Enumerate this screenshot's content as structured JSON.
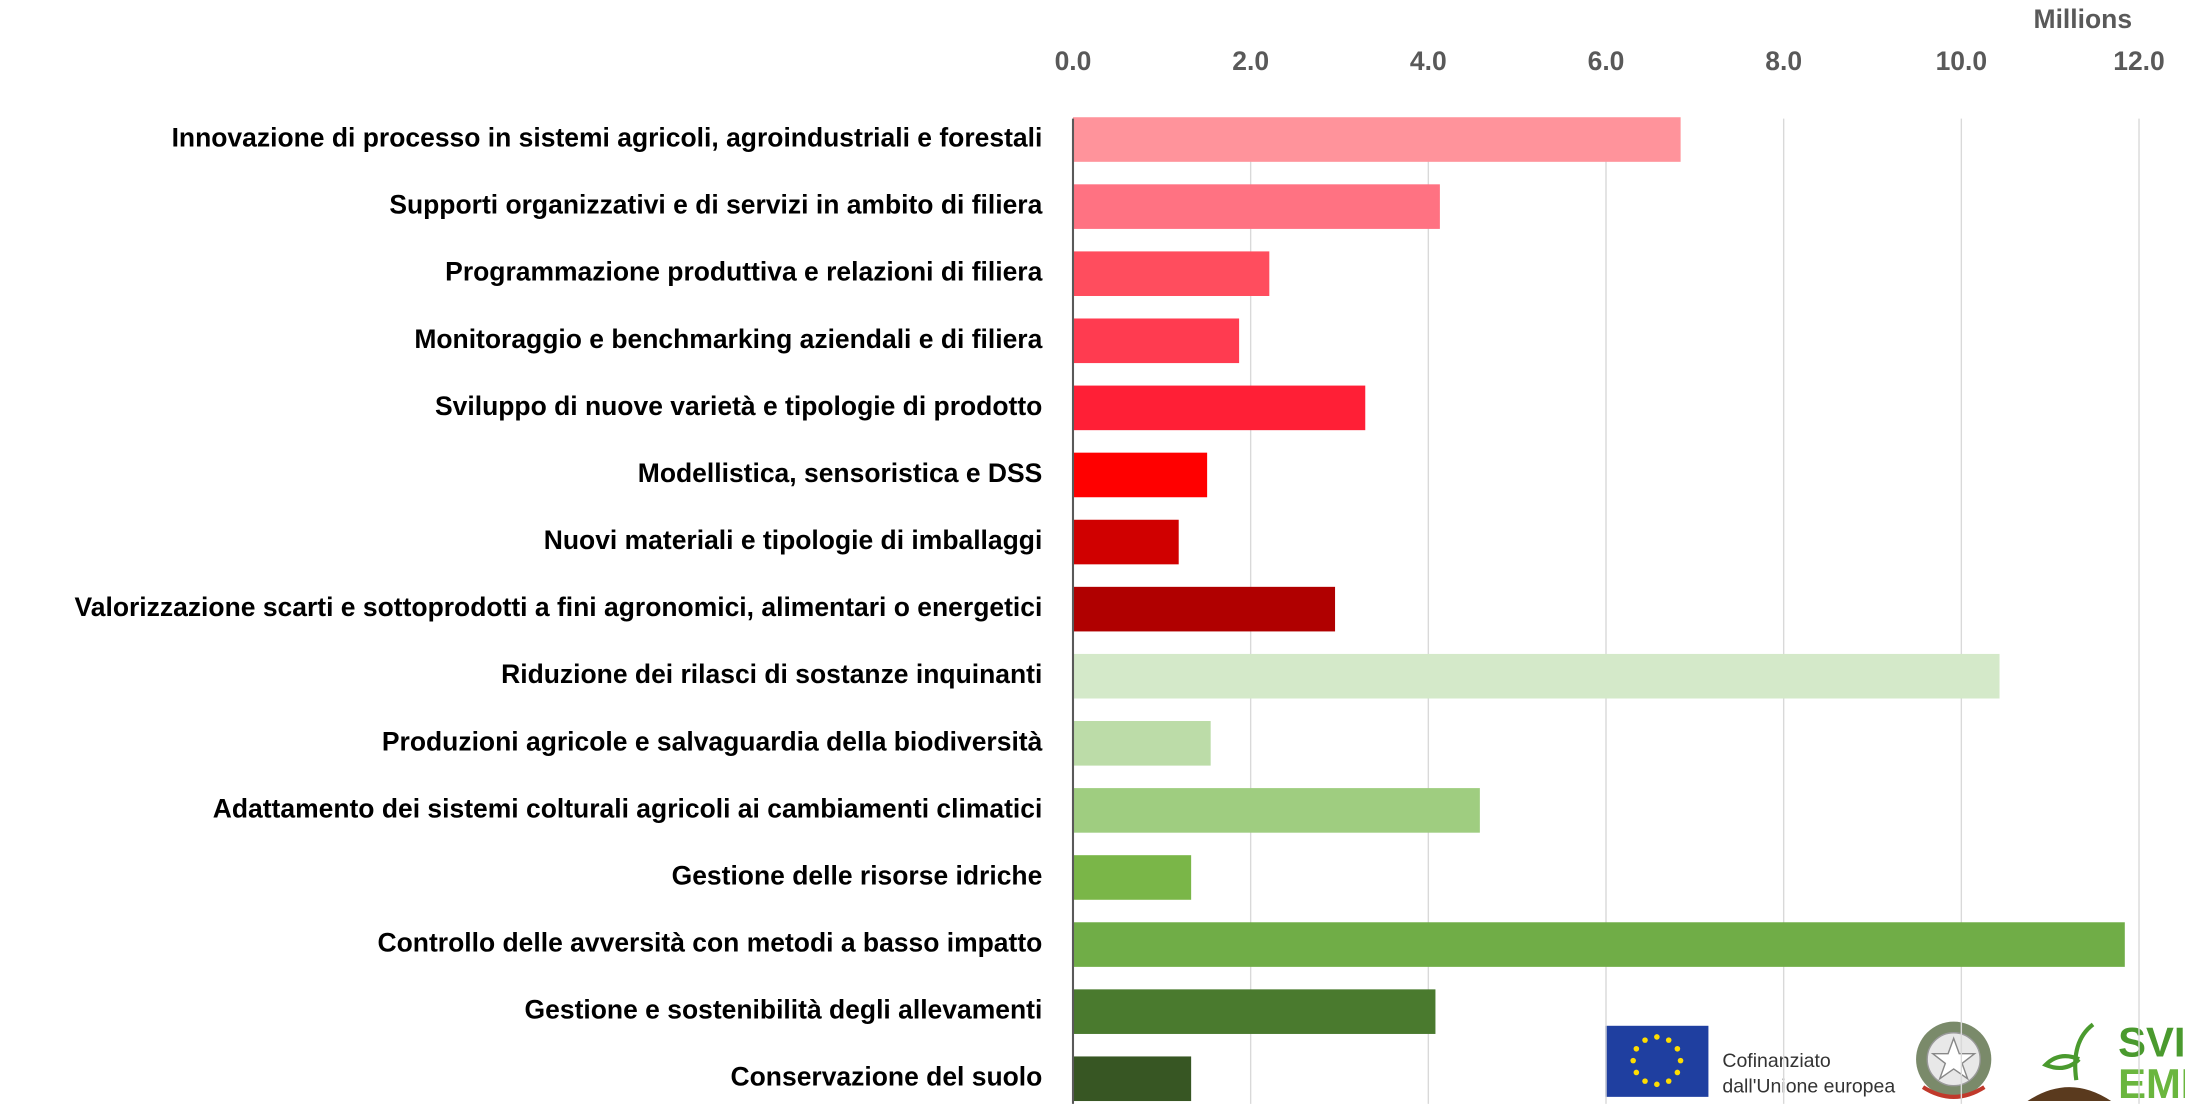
{
  "chart_data": {
    "type": "bar",
    "orientation": "horizontal",
    "unit_label": "Millions",
    "categories": [
      "Innovazione di processo in sistemi agricoli, agroindustriali e forestali",
      "Supporti organizzativi e di servizi in ambito di filiera",
      "Programmazione produttiva e relazioni di filiera",
      "Monitoraggio e benchmarking aziendali e di filiera",
      "Sviluppo di nuove varietà e tipologie di prodotto",
      "Modellistica, sensoristica e DSS",
      "Nuovi materiali e tipologie di imballaggi",
      "Valorizzazione scarti e sottoprodotti a fini agronomici, alimentari o energetici",
      "Riduzione dei rilasci di sostanze inquinanti",
      "Produzioni agricole e salvaguardia della biodiversità",
      "Adattamento dei sistemi colturali agricoli ai cambiamenti climatici",
      "Gestione delle risorse idriche",
      "Controllo delle avversità con metodi a basso impatto",
      "Gestione e sostenibilità degli allevamenti",
      "Conservazione del suolo"
    ],
    "values": [
      6.84,
      4.13,
      2.21,
      1.87,
      3.29,
      1.51,
      1.19,
      2.95,
      10.43,
      1.55,
      4.58,
      1.33,
      11.84,
      4.08,
      1.33
    ],
    "colors": [
      "#ff939b",
      "#ff7282",
      "#ff4d5e",
      "#ff3b50",
      "#ff1f36",
      "#ff0000",
      "#d00000",
      "#b00000",
      "#d4e9c9",
      "#bcdca8",
      "#9fcd80",
      "#7ab648",
      "#70ad47",
      "#4a7a2e",
      "#375623"
    ],
    "xlim": [
      0,
      12
    ],
    "xticks": [
      {
        "value": 0,
        "label": "0.0"
      },
      {
        "value": 2,
        "label": "2.0"
      },
      {
        "value": 4,
        "label": "4.0"
      },
      {
        "value": 6,
        "label": "6.0"
      },
      {
        "value": 8,
        "label": "8.0"
      },
      {
        "value": 10,
        "label": "10.0"
      },
      {
        "value": 12,
        "label": "12.0"
      }
    ],
    "grid": true
  },
  "logos": {
    "eu_line1": "Cofinanziato",
    "eu_line2": "dall'Unione europea",
    "brand_line1": "SVIL",
    "brand_line2": "EMIL"
  }
}
